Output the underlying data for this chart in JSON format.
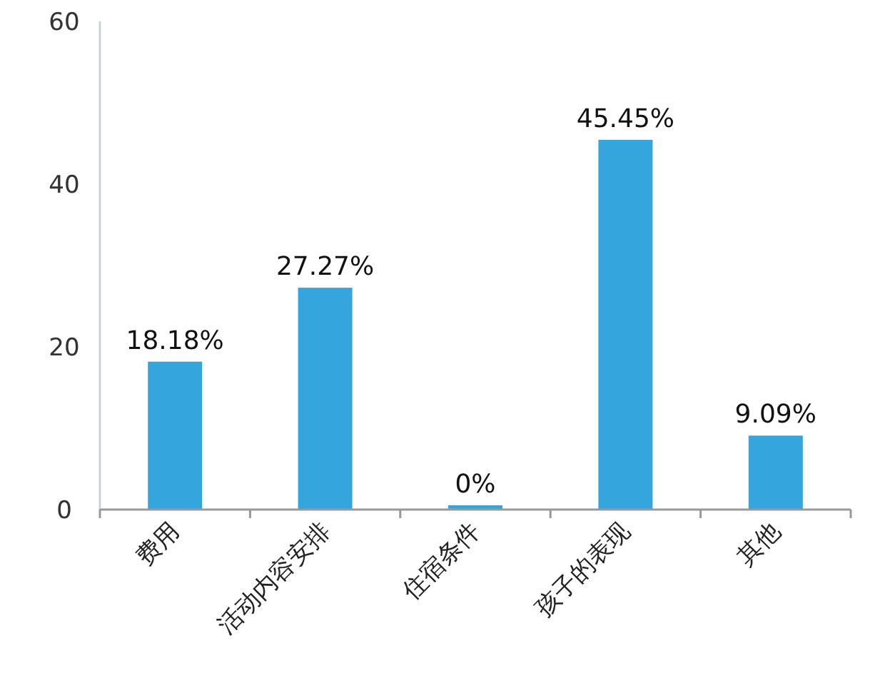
{
  "chart_data": {
    "type": "bar",
    "categories": [
      "费用",
      "活动内容安排",
      "住宿条件",
      "孩子的表现",
      "其他"
    ],
    "values": [
      18.18,
      27.27,
      0,
      45.45,
      9.09
    ],
    "value_labels": [
      "18.18%",
      "27.27%",
      "0%",
      "45.45%",
      "9.09%"
    ],
    "color": "#35a5de",
    "ylim": [
      0,
      60
    ],
    "yticks": [
      0,
      20,
      40,
      60
    ]
  }
}
